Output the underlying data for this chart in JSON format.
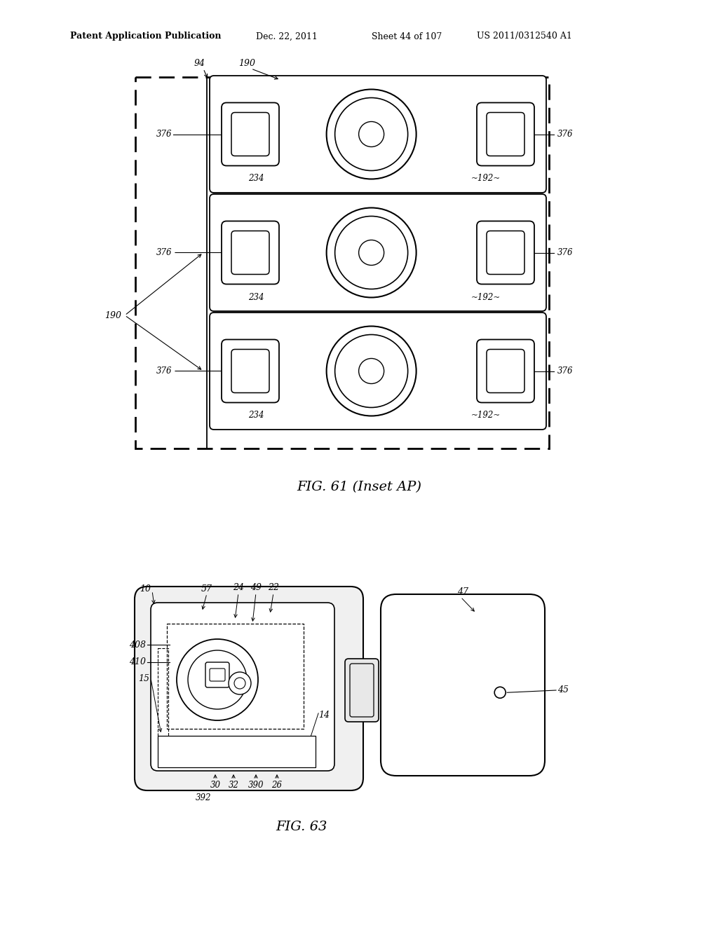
{
  "bg_color": "#ffffff",
  "header_text": "Patent Application Publication",
  "header_date": "Dec. 22, 2011",
  "header_sheet": "Sheet 44 of 107",
  "header_patent": "US 2011/0312540 A1",
  "fig61_title": "FIG. 61 (Inset AP)",
  "fig63_title": "FIG. 63"
}
